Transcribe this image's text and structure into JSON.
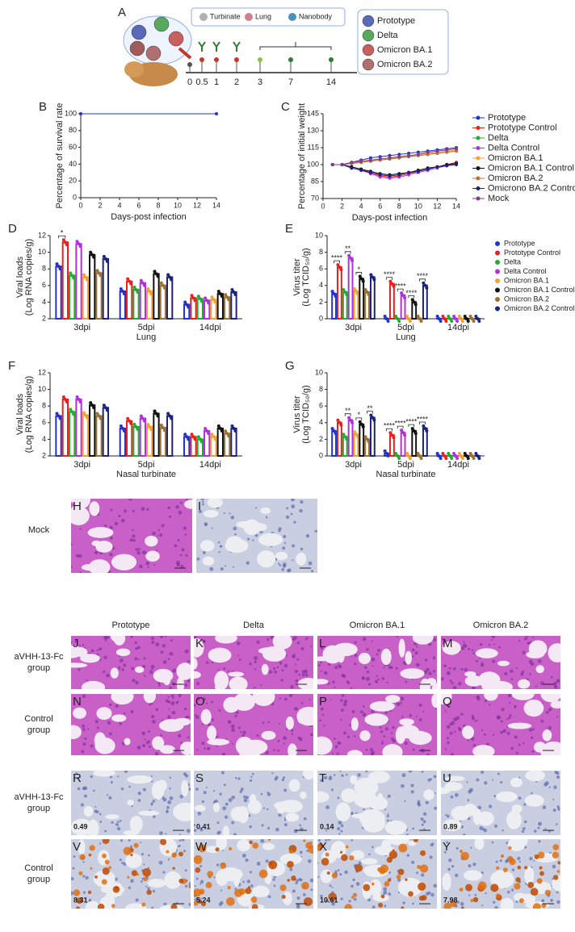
{
  "panel_a": {
    "label": "A",
    "organs": [
      "Turbinate",
      "Lung",
      "Nanobody"
    ],
    "timeline": [
      0,
      0.5,
      1,
      2,
      3,
      7,
      14
    ],
    "variants": [
      "Prototype",
      "Delta",
      "Omicron BA.1",
      "Omicron BA.2"
    ]
  },
  "chart_data": [
    {
      "type": "line",
      "panel": "B",
      "ylabel": [
        "Percentage of survival rate"
      ],
      "xlabel": "Days-post infection",
      "x": [
        0,
        14
      ],
      "series": [
        {
          "color": "#2233cc",
          "values": [
            100,
            100
          ]
        }
      ],
      "xlim": [
        0,
        14
      ],
      "xticks": [
        0,
        2,
        4,
        6,
        8,
        10,
        12,
        14
      ],
      "ylim": [
        0,
        100
      ],
      "yticks": [
        0,
        20,
        40,
        60,
        80,
        100
      ]
    },
    {
      "type": "line",
      "panel": "C",
      "ylabel": [
        "Percentage of initial weight"
      ],
      "xlabel": "Days-post infection",
      "x": [
        1,
        2,
        3,
        4,
        5,
        6,
        7,
        8,
        9,
        10,
        11,
        12,
        13,
        14
      ],
      "series": [
        {
          "name": "Prototype",
          "color": "#2233cc",
          "values": [
            100,
            100,
            102,
            104,
            106,
            107,
            108,
            109,
            110,
            111,
            112,
            113,
            114,
            115
          ]
        },
        {
          "name": "Prototype Control",
          "color": "#e8201e",
          "values": [
            100,
            100,
            98,
            96,
            93,
            90,
            89,
            90,
            92,
            94,
            96,
            98,
            100,
            102
          ]
        },
        {
          "name": "Delta",
          "color": "#22aa33",
          "values": [
            100,
            100,
            101,
            102,
            103,
            104,
            105,
            106,
            107,
            108,
            109,
            110,
            111,
            112
          ]
        },
        {
          "name": "Delta Control",
          "color": "#b030e0",
          "values": [
            100,
            100,
            97,
            95,
            92,
            89,
            88,
            89,
            91,
            93,
            95,
            97,
            99,
            101
          ]
        },
        {
          "name": "Omicron BA.1",
          "color": "#f5a030",
          "values": [
            100,
            100,
            101,
            103,
            104,
            105,
            106,
            107,
            108,
            109,
            110,
            111,
            112,
            113
          ]
        },
        {
          "name": "Omicron BA.1 Control",
          "color": "#111111",
          "values": [
            100,
            100,
            98,
            96,
            94,
            92,
            91,
            92,
            93,
            95,
            97,
            98,
            100,
            101
          ]
        },
        {
          "name": "Omicron BA.2",
          "color": "#c07030",
          "values": [
            100,
            100,
            101,
            102,
            103,
            104,
            105,
            106,
            107,
            108,
            109,
            110,
            111,
            112
          ]
        },
        {
          "name": "Omicrono BA.2 Control",
          "color": "#1a237e",
          "values": [
            100,
            100,
            97,
            95,
            93,
            91,
            90,
            91,
            93,
            94,
            96,
            98,
            99,
            100
          ]
        },
        {
          "name": "Mock",
          "color": "#8a3a8a",
          "values": [
            100,
            100,
            102,
            103,
            104,
            105,
            106,
            107,
            108,
            109,
            111,
            112,
            113,
            114
          ]
        }
      ],
      "xlim": [
        0,
        14
      ],
      "xticks": [
        0,
        2,
        4,
        6,
        8,
        10,
        12,
        14
      ],
      "ylim": [
        70,
        145
      ],
      "yticks": [
        70,
        85,
        100,
        115,
        130,
        145
      ]
    },
    {
      "type": "bar",
      "panel": "D",
      "ylabel": [
        "Viral loads",
        "(Log RNA copies/g)"
      ],
      "xlabel": "Lung",
      "categories": [
        "3dpi",
        "5dpi",
        "14dpi"
      ],
      "annotations": [
        "*"
      ],
      "series": [
        {
          "color": "#2233cc",
          "values": [
            8.3,
            5.3,
            3.7
          ]
        },
        {
          "color": "#e8201e",
          "values": [
            11.2,
            6.5,
            4.5
          ]
        },
        {
          "color": "#22aa33",
          "values": [
            7.2,
            5.5,
            4.4
          ]
        },
        {
          "color": "#b030e0",
          "values": [
            11.0,
            6.3,
            4.2
          ]
        },
        {
          "color": "#f5a030",
          "values": [
            7.0,
            5.3,
            4.3
          ]
        },
        {
          "color": "#111111",
          "values": [
            9.7,
            7.4,
            5.0
          ]
        },
        {
          "color": "#9c7030",
          "values": [
            7.5,
            6.0,
            4.6
          ]
        },
        {
          "color": "#1a237e",
          "values": [
            9.2,
            7.0,
            5.2
          ]
        }
      ],
      "ylim": [
        2,
        12
      ],
      "yticks": [
        2,
        4,
        6,
        8,
        10,
        12
      ]
    },
    {
      "type": "bar",
      "panel": "E",
      "ylabel": [
        "Virus titer",
        "(Log TCID₅₀/g)"
      ],
      "xlabel": "Lung",
      "categories": [
        "3dpi",
        "5dpi",
        "14dpi"
      ],
      "annotations": [
        "****",
        "**",
        "*",
        "****",
        "****",
        "****",
        "****"
      ],
      "series": [
        {
          "name": "Prototype",
          "color": "#2233cc",
          "values": [
            3.0,
            0,
            0
          ]
        },
        {
          "name": "Prototype Control",
          "color": "#e8201e",
          "values": [
            6.2,
            4.2,
            0
          ]
        },
        {
          "name": "Delta",
          "color": "#22aa33",
          "values": [
            3.2,
            0,
            0
          ]
        },
        {
          "name": "Delta Control",
          "color": "#b030e0",
          "values": [
            7.3,
            2.8,
            0
          ]
        },
        {
          "name": "Omicron BA.1",
          "color": "#f5a030",
          "values": [
            3.3,
            0,
            0
          ]
        },
        {
          "name": "Omicron BA.1 Control",
          "color": "#111111",
          "values": [
            4.8,
            2.0,
            0
          ]
        },
        {
          "name": "Omicron BA.2",
          "color": "#9c7030",
          "values": [
            3.2,
            0,
            0
          ]
        },
        {
          "name": "Omicron BA.2 Control",
          "color": "#1a237e",
          "values": [
            5.0,
            4.0,
            0
          ]
        }
      ],
      "ylim": [
        0,
        10
      ],
      "yticks": [
        0,
        2,
        4,
        6,
        8,
        10
      ]
    },
    {
      "type": "bar",
      "panel": "F",
      "ylabel": [
        "Viral loads",
        "(Log RNA copies/g)"
      ],
      "xlabel": "Nasal turbinate",
      "categories": [
        "3dpi",
        "5dpi",
        "14dpi"
      ],
      "annotations": [],
      "series": [
        {
          "color": "#2233cc",
          "values": [
            6.8,
            5.3,
            4.3
          ]
        },
        {
          "color": "#e8201e",
          "values": [
            8.8,
            6.2,
            4.3
          ]
        },
        {
          "color": "#22aa33",
          "values": [
            7.3,
            5.5,
            4.0
          ]
        },
        {
          "color": "#b030e0",
          "values": [
            8.8,
            6.5,
            5.0
          ]
        },
        {
          "color": "#f5a030",
          "values": [
            6.9,
            5.5,
            4.3
          ]
        },
        {
          "color": "#111111",
          "values": [
            8.1,
            7.1,
            5.3
          ]
        },
        {
          "color": "#9c7030",
          "values": [
            6.8,
            5.4,
            4.7
          ]
        },
        {
          "color": "#1a237e",
          "values": [
            7.8,
            6.8,
            5.3
          ]
        }
      ],
      "ylim": [
        2,
        12
      ],
      "yticks": [
        2,
        4,
        6,
        8,
        10,
        12
      ]
    },
    {
      "type": "bar",
      "panel": "G",
      "ylabel": [
        "Virus titer",
        "(Log TCID₅₀/g)"
      ],
      "xlabel": "Nasal turbinate",
      "categories": [
        "3dpi",
        "5dpi",
        "14dpi"
      ],
      "annotations": [
        "**",
        "*",
        "**",
        "****",
        "****",
        "****",
        "****"
      ],
      "series": [
        {
          "color": "#2233cc",
          "values": [
            3.0,
            0.3,
            0
          ]
        },
        {
          "color": "#e8201e",
          "values": [
            4.0,
            2.5,
            0
          ]
        },
        {
          "color": "#22aa33",
          "values": [
            2.3,
            0,
            0
          ]
        },
        {
          "color": "#b030e0",
          "values": [
            4.3,
            2.8,
            0
          ]
        },
        {
          "color": "#f5a030",
          "values": [
            2.6,
            0,
            0
          ]
        },
        {
          "color": "#111111",
          "values": [
            3.8,
            3.0,
            0
          ]
        },
        {
          "color": "#9c7030",
          "values": [
            2.0,
            0,
            0
          ]
        },
        {
          "color": "#1a237e",
          "values": [
            4.6,
            3.3,
            0
          ]
        }
      ],
      "ylim": [
        0,
        10
      ],
      "yticks": [
        0,
        2,
        4,
        6,
        8,
        10
      ]
    }
  ],
  "histology": {
    "mock_label": "Mock",
    "mock_panels": [
      "H",
      "I"
    ],
    "columns": [
      "Prototype",
      "Delta",
      "Omicron BA.1",
      "Omicron BA.2"
    ],
    "rows": [
      {
        "label": [
          "aVHH-13-Fc",
          "group"
        ],
        "panels": [
          "J",
          "K",
          "L",
          "M"
        ]
      },
      {
        "label": [
          "Control",
          "group"
        ],
        "panels": [
          "N",
          "O",
          "P",
          "Q"
        ]
      },
      {
        "label": [
          "aVHH-13-Fc",
          "group"
        ],
        "panels": [
          "R",
          "S",
          "T",
          "U"
        ],
        "scores": [
          0.49,
          0.41,
          0.14,
          0.89
        ]
      },
      {
        "label": [
          "Control",
          "group"
        ],
        "panels": [
          "V",
          "W",
          "X",
          "Y"
        ],
        "scores": [
          8.31,
          5.24,
          10.61,
          7.98
        ]
      }
    ]
  }
}
